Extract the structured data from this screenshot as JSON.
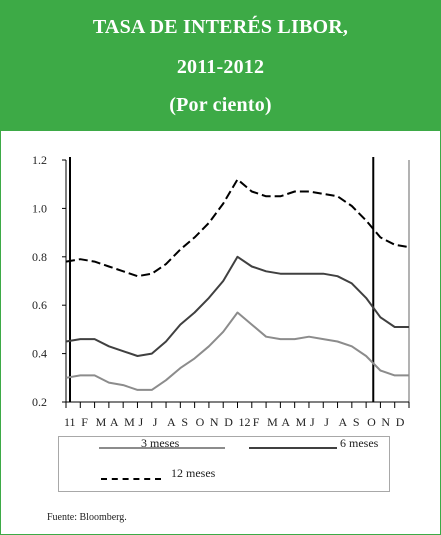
{
  "header": {
    "title_line1": "TASA DE INTERÉS LIBOR,",
    "title_line2": "2011-2012",
    "title_line3": "(Por ciento)"
  },
  "source": "Fuente:  Bloomberg.",
  "colors": {
    "header_bg": "#3daa46",
    "series_3m": "#8c8c8c",
    "series_6m": "#404040",
    "series_12m": "#000000"
  },
  "chart_data": {
    "type": "line",
    "title": "TASA DE INTERÉS LIBOR, 2011-2012",
    "subtitle": "(Por ciento)",
    "xlabel": "",
    "ylabel": "",
    "ylim": [
      0.2,
      1.2
    ],
    "yticks": [
      "0.2",
      "0.4",
      "0.6",
      "0.8",
      "1.0",
      "1.2"
    ],
    "ytick_values": [
      0.2,
      0.4,
      0.6,
      0.8,
      1.0,
      1.2
    ],
    "x_tick_labels": [
      "11",
      "F",
      "M",
      "A",
      "M",
      "J",
      "J",
      "A",
      "S",
      "O",
      "N",
      "D",
      "12",
      "F",
      "M",
      "A",
      "M",
      "J",
      "J",
      "A",
      "S",
      "O",
      "N",
      "D"
    ],
    "x": [
      0,
      1,
      2,
      3,
      4,
      5,
      6,
      7,
      8,
      9,
      10,
      11,
      12,
      13,
      14,
      15,
      16,
      17,
      18,
      19,
      20,
      21,
      22,
      23,
      24
    ],
    "marker_lines_x": [
      0,
      21.5
    ],
    "legend_position": "bottom",
    "series": [
      {
        "name": "3 meses",
        "style": "solid",
        "values": [
          0.3,
          0.31,
          0.31,
          0.28,
          0.27,
          0.25,
          0.25,
          0.29,
          0.34,
          0.38,
          0.43,
          0.49,
          0.57,
          0.52,
          0.47,
          0.46,
          0.46,
          0.47,
          0.46,
          0.45,
          0.43,
          0.39,
          0.33,
          0.31,
          0.31
        ]
      },
      {
        "name": "6 meses",
        "style": "solid",
        "values": [
          0.45,
          0.46,
          0.46,
          0.43,
          0.41,
          0.39,
          0.4,
          0.45,
          0.52,
          0.57,
          0.63,
          0.7,
          0.8,
          0.76,
          0.74,
          0.73,
          0.73,
          0.73,
          0.73,
          0.72,
          0.69,
          0.63,
          0.55,
          0.51,
          0.51
        ]
      },
      {
        "name": "12 meses",
        "style": "dashed",
        "values": [
          0.78,
          0.79,
          0.78,
          0.76,
          0.74,
          0.72,
          0.73,
          0.77,
          0.83,
          0.88,
          0.94,
          1.02,
          1.12,
          1.07,
          1.05,
          1.05,
          1.07,
          1.07,
          1.06,
          1.05,
          1.01,
          0.95,
          0.88,
          0.85,
          0.84
        ]
      }
    ]
  },
  "legend": {
    "items": [
      "3 meses",
      "6 meses",
      "12 meses"
    ]
  }
}
